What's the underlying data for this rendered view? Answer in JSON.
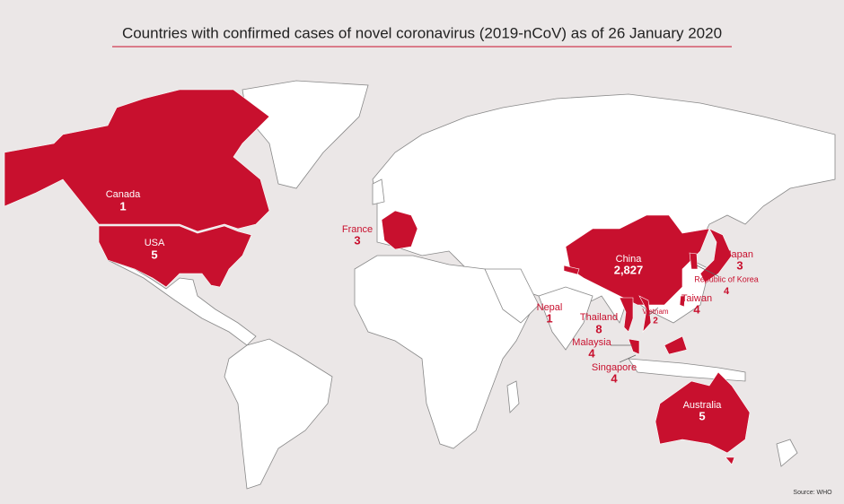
{
  "title": "Countries with confirmed cases of novel coronavirus (2019-nCoV) as of 26 January 2020",
  "countries": [
    {
      "name": "Canada",
      "cases": 1
    },
    {
      "name": "USA",
      "cases": 5
    },
    {
      "name": "France",
      "cases": 3
    },
    {
      "name": "China",
      "cases": {
        "value": 2827,
        "label": "2,827"
      }
    },
    {
      "name": "Nepal",
      "cases": 1
    },
    {
      "name": "Thailand",
      "cases": 8
    },
    {
      "name": "Vietnam",
      "cases": 2
    },
    {
      "name": "Malaysia",
      "cases": 4
    },
    {
      "name": "Singapore",
      "cases": 4
    },
    {
      "name": "Japan",
      "cases": 3
    },
    {
      "name": "Republic of Korea",
      "cases": 4
    },
    {
      "name": "Taiwan",
      "cases": 4
    },
    {
      "name": "Australia",
      "cases": 5
    }
  ],
  "source": "Source: WHO"
}
